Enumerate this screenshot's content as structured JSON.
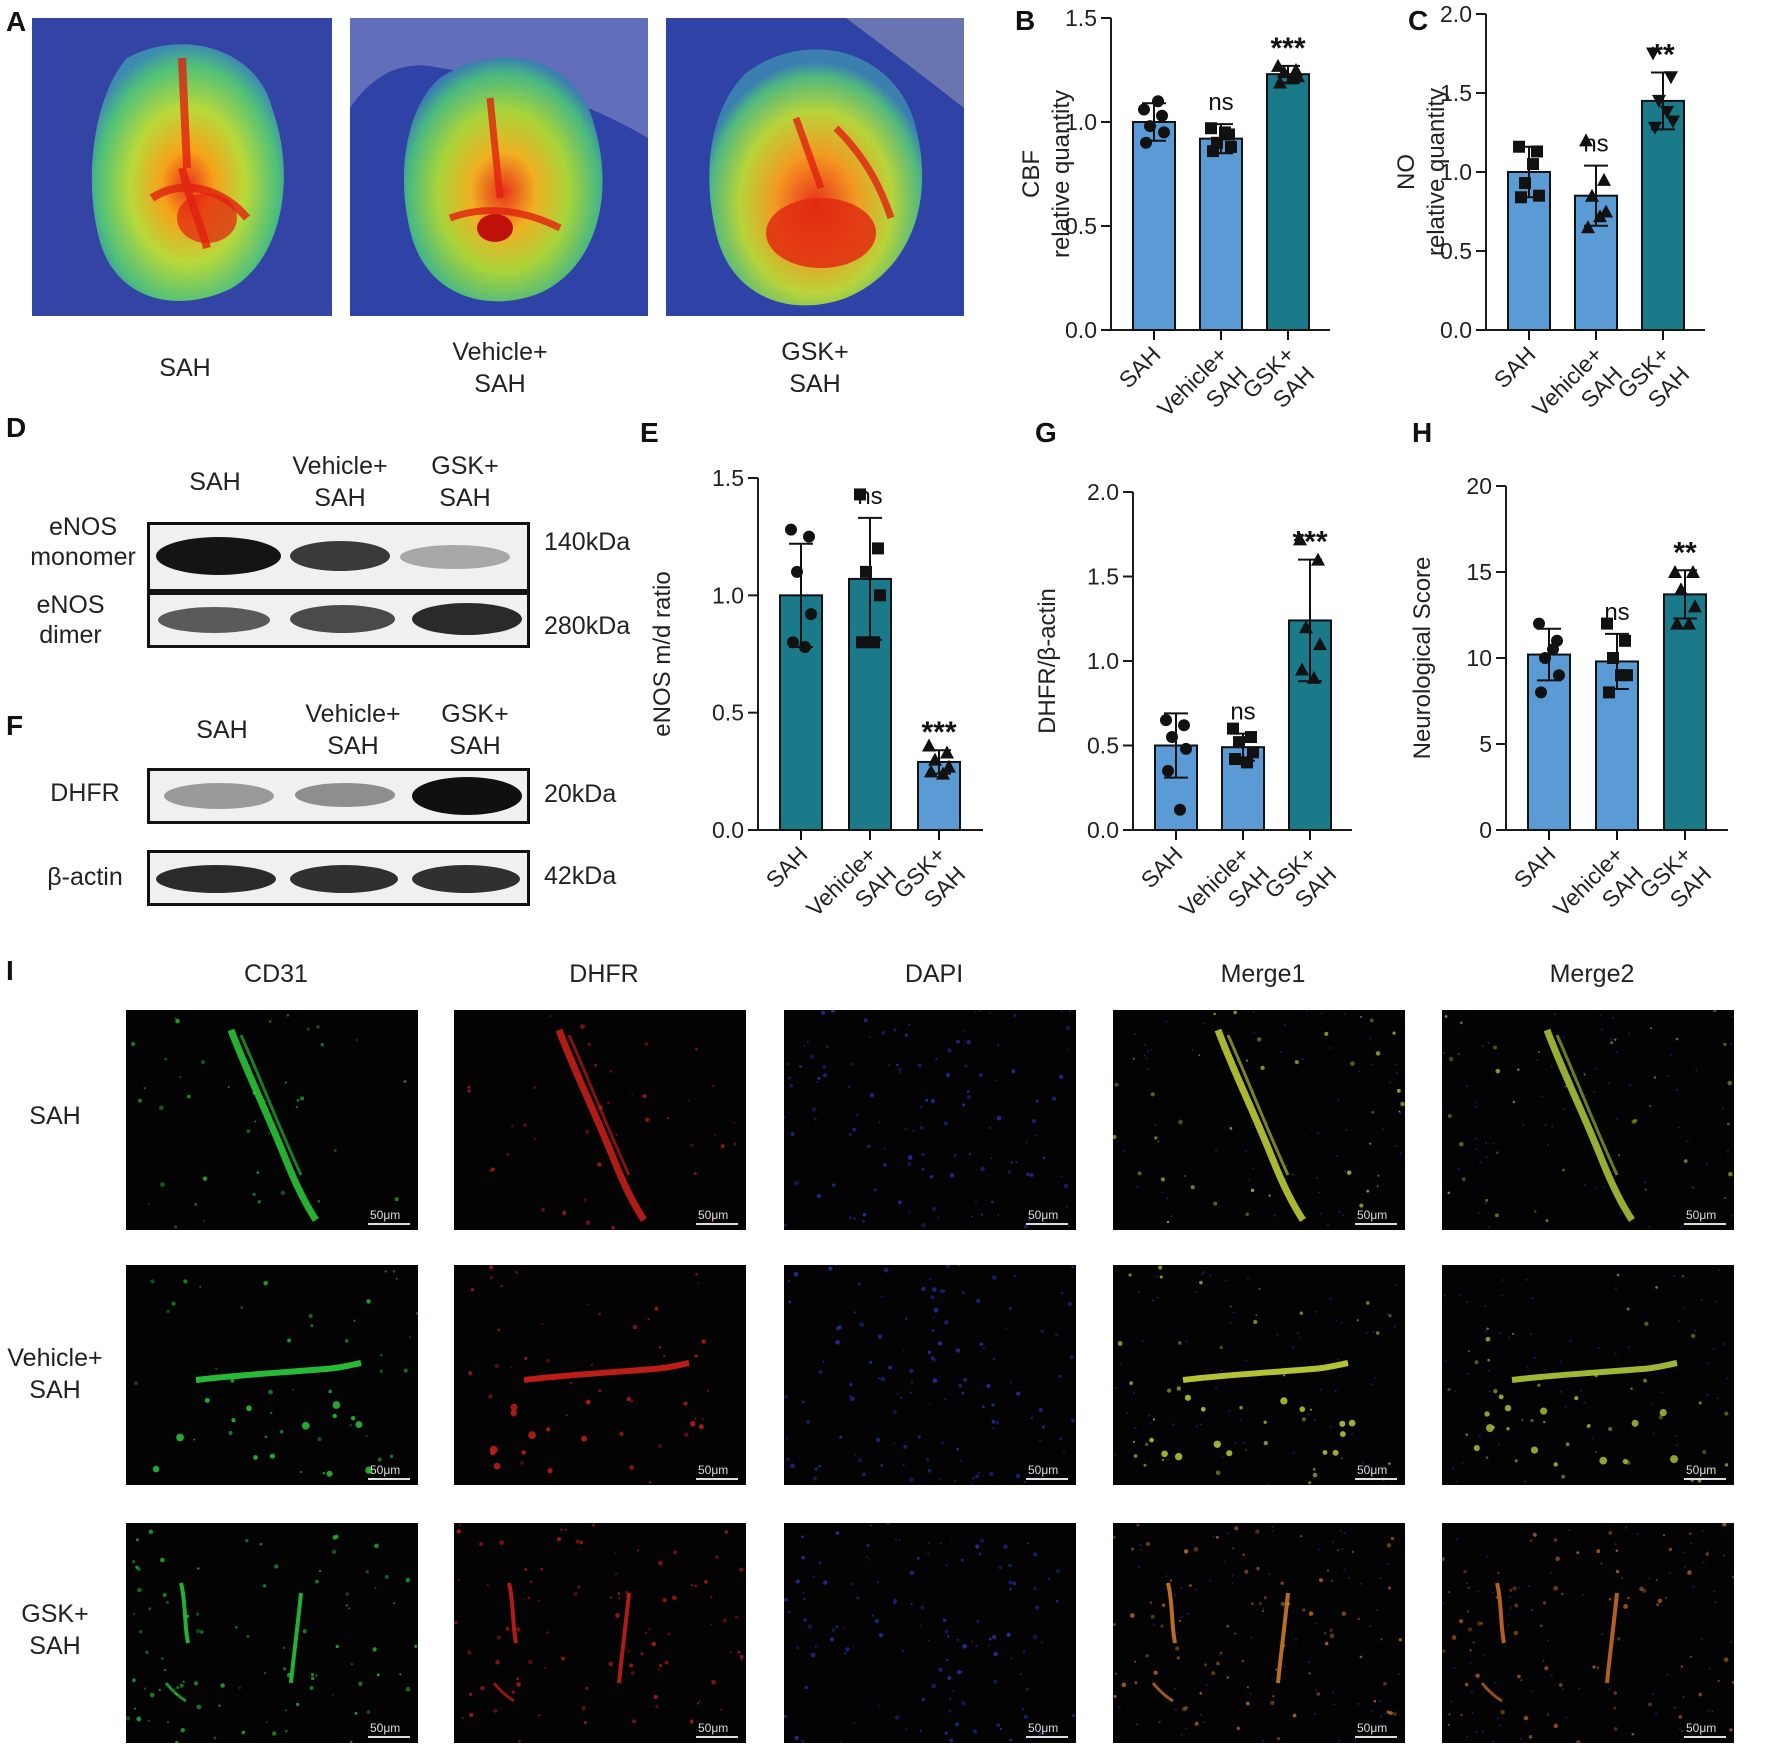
{
  "panels": {
    "A": {
      "letter": "A",
      "captions": [
        "SAH",
        "Vehicle+\nSAH",
        "GSK+\nSAH"
      ]
    },
    "D": {
      "letter": "D",
      "lanes": [
        "SAH",
        "Vehicle+\nSAH",
        "GSK+\nSAH"
      ],
      "rows": [
        {
          "label": "eNOS\nmonomer",
          "kda": "140kDa"
        },
        {
          "label": "eNOS\ndimer",
          "kda": "280kDa"
        }
      ]
    },
    "F": {
      "letter": "F",
      "lanes": [
        "SAH",
        "Vehicle+\nSAH",
        "GSK+\nSAH"
      ],
      "rows": [
        {
          "label": "DHFR",
          "kda": "20kDa"
        },
        {
          "label": "β-actin",
          "kda": "42kDa"
        }
      ]
    },
    "I": {
      "letter": "I",
      "columns": [
        "CD31",
        "DHFR",
        "DAPI",
        "Merge1",
        "Merge2"
      ],
      "rows": [
        "SAH",
        "Vehicle+\nSAH",
        "GSK+\nSAH"
      ],
      "scale_label": "50μm"
    }
  },
  "colors": {
    "light_bar": "#5b9bd5",
    "dark_bar": "#1a7a8a",
    "axis": "#1a1a1a"
  },
  "chart_data": [
    {
      "id": "B",
      "letter": "B",
      "type": "bar",
      "categories": [
        "SAH",
        "Vehicle+\nSAH",
        "GSK+\nSAH"
      ],
      "values": [
        1.0,
        0.92,
        1.23
      ],
      "errors": [
        0.09,
        0.07,
        0.04
      ],
      "bar_colors": [
        "#5b9bd5",
        "#5b9bd5",
        "#1a7a8a"
      ],
      "significance": [
        "",
        "ns",
        "***"
      ],
      "ylabel_lines": [
        "CBF",
        "relative quantity"
      ],
      "ylim": [
        0,
        1.5
      ],
      "yticks": [
        "0.0",
        "0.5",
        "1.0",
        "1.5"
      ],
      "points": [
        [
          1.06,
          1.03,
          0.98,
          0.95,
          0.9,
          1.1
        ],
        [
          0.97,
          0.94,
          0.9,
          0.88,
          0.86,
          0.95
        ],
        [
          1.27,
          1.25,
          1.24,
          1.22,
          1.19,
          1.21
        ]
      ],
      "markers": [
        "circle",
        "square",
        "triangle"
      ]
    },
    {
      "id": "C",
      "letter": "C",
      "type": "bar",
      "categories": [
        "SAH",
        "Vehicle+\nSAH",
        "GSK+\nSAH"
      ],
      "values": [
        1.0,
        0.85,
        1.45
      ],
      "errors": [
        0.16,
        0.19,
        0.18
      ],
      "bar_colors": [
        "#5b9bd5",
        "#5b9bd5",
        "#1a7a8a"
      ],
      "significance": [
        "",
        "ns",
        "**"
      ],
      "ylabel_lines": [
        "NO",
        "relative quantity"
      ],
      "ylim": [
        0,
        2.0
      ],
      "yticks": [
        "0.0",
        "0.5",
        "1.0",
        "1.5",
        "2.0"
      ],
      "points": [
        [
          1.16,
          1.13,
          0.93,
          0.85,
          0.84,
          1.05
        ],
        [
          1.2,
          0.95,
          0.85,
          0.75,
          0.65,
          0.72
        ],
        [
          1.75,
          1.6,
          1.45,
          1.32,
          1.28,
          1.38
        ]
      ],
      "markers": [
        "square",
        "triangle",
        "triangle-down"
      ]
    },
    {
      "id": "E",
      "letter": "E",
      "type": "bar",
      "categories": [
        "SAH",
        "Vehicle+\nSAH",
        "GSK+\nSAH"
      ],
      "values": [
        1.0,
        1.07,
        0.29
      ],
      "errors": [
        0.22,
        0.26,
        0.05
      ],
      "bar_colors": [
        "#1a7a8a",
        "#1a7a8a",
        "#5b9bd5"
      ],
      "significance": [
        "",
        "ns",
        "***"
      ],
      "ylabel_lines": [
        "eNOS m/d ratio"
      ],
      "ylim": [
        0,
        1.5
      ],
      "yticks": [
        "0.0",
        "0.5",
        "1.0",
        "1.5"
      ],
      "points": [
        [
          1.28,
          1.25,
          1.1,
          0.92,
          0.8,
          0.78
        ],
        [
          1.43,
          1.2,
          1.1,
          1.0,
          0.8,
          0.8
        ],
        [
          0.36,
          0.33,
          0.3,
          0.27,
          0.25,
          0.24
        ]
      ],
      "markers": [
        "circle",
        "square",
        "triangle"
      ]
    },
    {
      "id": "G",
      "letter": "G",
      "type": "bar",
      "categories": [
        "SAH",
        "Vehicle+\nSAH",
        "GSK+\nSAH"
      ],
      "values": [
        0.5,
        0.49,
        1.24
      ],
      "errors": [
        0.19,
        0.08,
        0.36
      ],
      "bar_colors": [
        "#5b9bd5",
        "#5b9bd5",
        "#1a7a8a"
      ],
      "significance": [
        "",
        "ns",
        "***"
      ],
      "ylabel_lines": [
        "DHFR/β-actin"
      ],
      "ylim": [
        0,
        2.0
      ],
      "yticks": [
        "0.0",
        "0.5",
        "1.0",
        "1.5",
        "2.0"
      ],
      "points": [
        [
          0.65,
          0.62,
          0.55,
          0.48,
          0.35,
          0.12
        ],
        [
          0.6,
          0.55,
          0.52,
          0.46,
          0.42,
          0.4
        ],
        [
          1.72,
          1.6,
          1.2,
          1.1,
          0.95,
          0.9
        ]
      ],
      "markers": [
        "circle",
        "square",
        "triangle"
      ]
    },
    {
      "id": "H",
      "letter": "H",
      "type": "bar",
      "categories": [
        "SAH",
        "Vehicle+\nSAH",
        "GSK+\nSAH"
      ],
      "values": [
        10.2,
        9.8,
        13.7
      ],
      "errors": [
        1.5,
        1.6,
        1.4
      ],
      "bar_colors": [
        "#5b9bd5",
        "#5b9bd5",
        "#1a7a8a"
      ],
      "significance": [
        "",
        "ns",
        "**"
      ],
      "ylabel_lines": [
        "Neurological Score"
      ],
      "ylim": [
        0,
        20
      ],
      "yticks": [
        "0",
        "5",
        "10",
        "15",
        "20"
      ],
      "points": [
        [
          12,
          11,
          10,
          9,
          8,
          10.5
        ],
        [
          12,
          11,
          10,
          9,
          8,
          9
        ],
        [
          15,
          15,
          14,
          13,
          12,
          12
        ]
      ],
      "markers": [
        "circle",
        "square",
        "triangle"
      ]
    }
  ]
}
